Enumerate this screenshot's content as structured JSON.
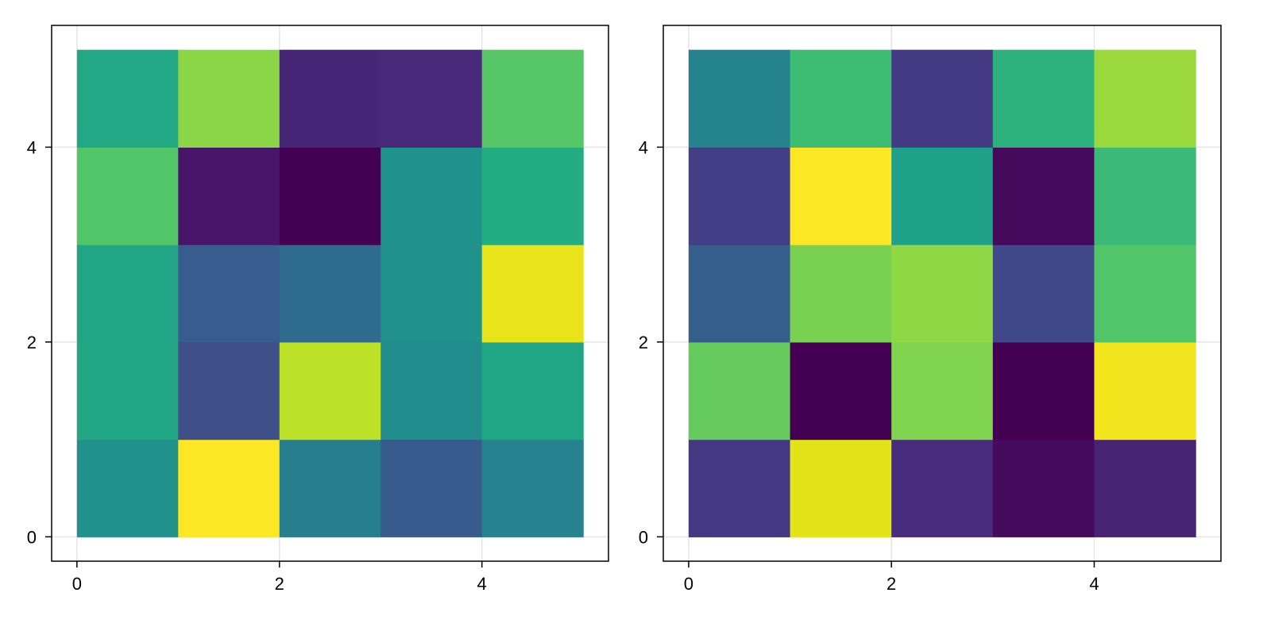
{
  "chart_data": [
    {
      "type": "heatmap",
      "title": "",
      "xlabel": "",
      "ylabel": "",
      "colormap": "viridis",
      "grid": true,
      "xlim": [
        -0.25,
        5.25
      ],
      "ylim": [
        -0.25,
        5.25
      ],
      "xticks": [
        0,
        2,
        4
      ],
      "yticks": [
        0,
        2,
        4
      ],
      "x_edges": [
        0,
        1,
        2,
        3,
        4,
        5
      ],
      "y_edges": [
        0,
        1,
        2,
        3,
        4,
        5
      ],
      "rows_bottom_to_top": [
        [
          0.48,
          1.0,
          0.43,
          0.26,
          0.43
        ],
        [
          0.58,
          0.2,
          0.88,
          0.48,
          0.6
        ],
        [
          0.58,
          0.28,
          0.35,
          0.49,
          0.96
        ],
        [
          0.7,
          0.05,
          0.0,
          0.48,
          0.6
        ],
        [
          0.6,
          0.8,
          0.1,
          0.1,
          0.72
        ]
      ],
      "colors_bottom_to_top": [
        [
          "#21918C",
          "#FDE725",
          "#277F8E",
          "#375B8D",
          "#26828E"
        ],
        [
          "#22A785",
          "#3F4F8A",
          "#BDE126",
          "#218E8D",
          "#20A585"
        ],
        [
          "#21A585",
          "#365D8D",
          "#2E6B8E",
          "#21918C",
          "#E8E419"
        ],
        [
          "#52C569",
          "#481568",
          "#440154",
          "#20928C",
          "#23AD81"
        ],
        [
          "#22A884",
          "#8BD646",
          "#482677",
          "#482979",
          "#56C667"
        ]
      ]
    },
    {
      "type": "heatmap",
      "title": "",
      "xlabel": "",
      "ylabel": "",
      "colormap": "viridis",
      "grid": true,
      "xlim": [
        -0.25,
        5.25
      ],
      "ylim": [
        -0.25,
        5.25
      ],
      "xticks": [
        0,
        2,
        4
      ],
      "yticks": [
        0,
        2,
        4
      ],
      "x_edges": [
        0,
        1,
        2,
        3,
        4,
        5
      ],
      "y_edges": [
        0,
        1,
        2,
        3,
        4,
        5
      ],
      "rows_bottom_to_top": [
        [
          0.15,
          0.95,
          0.12,
          0.03,
          0.1
        ],
        [
          0.78,
          0.0,
          0.8,
          0.0,
          0.98
        ],
        [
          0.25,
          0.8,
          0.85,
          0.18,
          0.75
        ],
        [
          0.15,
          1.0,
          0.55,
          0.03,
          0.7
        ],
        [
          0.45,
          0.7,
          0.15,
          0.62,
          0.85
        ]
      ],
      "colors_bottom_to_top": [
        [
          "#453882",
          "#E2E418",
          "#472D7B",
          "#460B5E",
          "#482475"
        ],
        [
          "#66CB5D",
          "#440154",
          "#7FD34E",
          "#440154",
          "#F4E61E"
        ],
        [
          "#355E8D",
          "#7AD151",
          "#8FD744",
          "#3F4889",
          "#52C569"
        ],
        [
          "#433E85",
          "#FDE725",
          "#1FA088",
          "#460A5D",
          "#3ABA76"
        ],
        [
          "#25838E",
          "#3DBC74",
          "#443983",
          "#2DB27D",
          "#9BD93C"
        ]
      ]
    }
  ]
}
